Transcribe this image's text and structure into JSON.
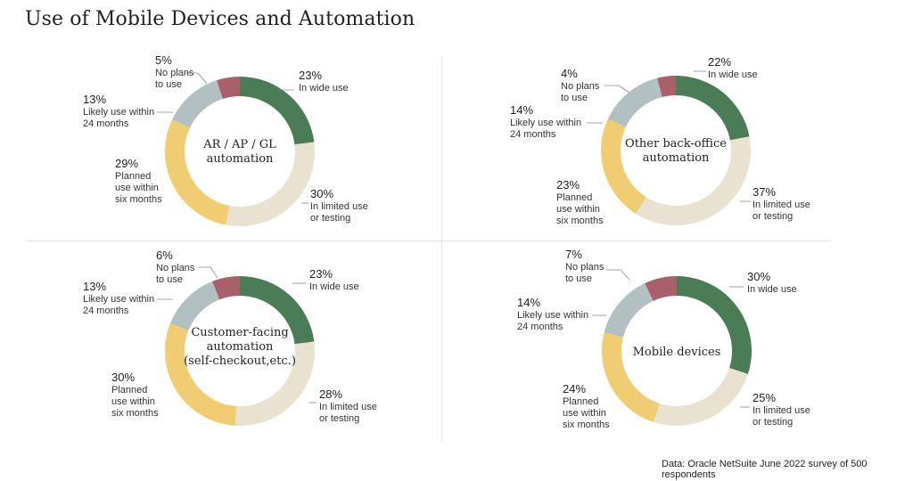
{
  "title": "Use of Mobile Devices and Automation",
  "source": "Data: Oracle NetSuite June 2022 survey of 500 respondents",
  "colors": {
    "wide": "#4a7c56",
    "limited": "#e9e2d0",
    "planned": "#f0cd72",
    "likely": "#b3c0c2",
    "noplans": "#a9606a"
  },
  "chart_data": [
    {
      "type": "pie",
      "title": "AR / AP / GL automation",
      "center_lines": [
        "AR / AP / GL",
        "automation"
      ],
      "slices": [
        {
          "key": "wide",
          "pct_label": "23%",
          "lines": [
            "In wide use"
          ],
          "value": 23
        },
        {
          "key": "limited",
          "pct_label": "30%",
          "lines": [
            "In limited use",
            "or testing"
          ],
          "value": 30
        },
        {
          "key": "planned",
          "pct_label": "29%",
          "lines": [
            "Planned",
            "use within",
            "six months"
          ],
          "value": 29
        },
        {
          "key": "likely",
          "pct_label": "13%",
          "lines": [
            "Likely use within",
            "24 months"
          ],
          "value": 13
        },
        {
          "key": "noplans",
          "pct_label": "5%",
          "lines": [
            "No plans",
            "to use"
          ],
          "value": 5
        }
      ]
    },
    {
      "type": "pie",
      "title": "Other back-office automation",
      "center_lines": [
        "Other back-office",
        "automation"
      ],
      "slices": [
        {
          "key": "wide",
          "pct_label": "22%",
          "lines": [
            "In wide use"
          ],
          "value": 22
        },
        {
          "key": "limited",
          "pct_label": "37%",
          "lines": [
            "In limited use",
            "or testing"
          ],
          "value": 37
        },
        {
          "key": "planned",
          "pct_label": "23%",
          "lines": [
            "Planned",
            "use within",
            "six months"
          ],
          "value": 23
        },
        {
          "key": "likely",
          "pct_label": "14%",
          "lines": [
            "Likely use within",
            "24 months"
          ],
          "value": 14
        },
        {
          "key": "noplans",
          "pct_label": "4%",
          "lines": [
            "No plans",
            "to use"
          ],
          "value": 4
        }
      ]
    },
    {
      "type": "pie",
      "title": "Customer-facing automation (self-checkout,etc.)",
      "center_lines": [
        "Customer-facing",
        "automation",
        "(self-checkout,etc.)"
      ],
      "slices": [
        {
          "key": "wide",
          "pct_label": "23%",
          "lines": [
            "In wide use"
          ],
          "value": 23
        },
        {
          "key": "limited",
          "pct_label": "28%",
          "lines": [
            "In limited use",
            "or testing"
          ],
          "value": 28
        },
        {
          "key": "planned",
          "pct_label": "30%",
          "lines": [
            "Planned",
            "use within",
            "six months"
          ],
          "value": 30
        },
        {
          "key": "likely",
          "pct_label": "13%",
          "lines": [
            "Likely use within",
            "24 months"
          ],
          "value": 13
        },
        {
          "key": "noplans",
          "pct_label": "6%",
          "lines": [
            "No plans",
            "to use"
          ],
          "value": 6
        }
      ]
    },
    {
      "type": "pie",
      "title": "Mobile devices",
      "center_lines": [
        "Mobile devices"
      ],
      "slices": [
        {
          "key": "wide",
          "pct_label": "30%",
          "lines": [
            "In wide use"
          ],
          "value": 30
        },
        {
          "key": "limited",
          "pct_label": "25%",
          "lines": [
            "In limited use",
            "or testing"
          ],
          "value": 25
        },
        {
          "key": "planned",
          "pct_label": "24%",
          "lines": [
            "Planned",
            "use within",
            "six months"
          ],
          "value": 24
        },
        {
          "key": "likely",
          "pct_label": "14%",
          "lines": [
            "Likely use within",
            "24 months"
          ],
          "value": 14
        },
        {
          "key": "noplans",
          "pct_label": "7%",
          "lines": [
            "No plans",
            "to use"
          ],
          "value": 7
        }
      ]
    }
  ]
}
